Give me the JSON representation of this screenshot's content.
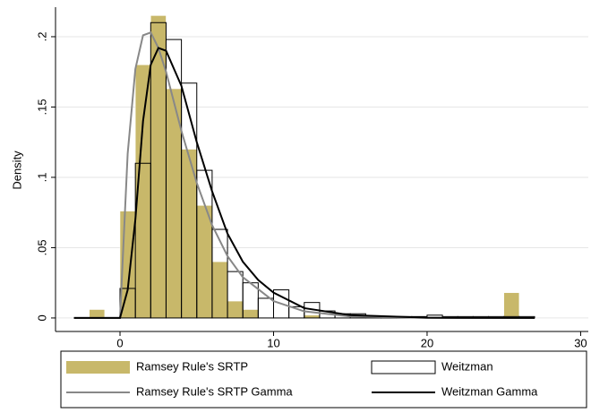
{
  "chart_data": {
    "type": "histogram",
    "ylabel": "Density",
    "xlim": [
      -4.2,
      30.5
    ],
    "ylim": [
      -0.0096,
      0.221
    ],
    "xticks": [
      0,
      10,
      20,
      30
    ],
    "yticks": [
      0,
      {
        "value": 0.05,
        "label": ".05"
      },
      {
        "value": 0.1,
        "label": ".1"
      },
      {
        "value": 0.15,
        "label": ".15"
      },
      {
        "value": 0.2,
        "label": ".2"
      }
    ],
    "grid": true,
    "legend": "bottom",
    "series": [
      {
        "name": "Ramsey Rule's SRTP",
        "type": "histogram",
        "color": "#c8b86a",
        "bins": [
          -2,
          -1,
          0,
          1,
          2,
          3,
          4,
          5,
          6,
          7,
          8,
          9,
          10,
          11,
          12,
          13,
          14,
          15,
          16,
          17,
          18,
          19,
          20,
          21,
          22,
          23,
          24,
          25,
          26,
          27
        ],
        "values": [
          0.006,
          0,
          0.076,
          0.18,
          0.215,
          0.163,
          0.12,
          0.08,
          0.04,
          0.012,
          0.006,
          0,
          0,
          0,
          0.002,
          0,
          0,
          0,
          0,
          0,
          0,
          0,
          0,
          0,
          0,
          0,
          0,
          0.018,
          0
        ]
      },
      {
        "name": "Weitzman",
        "type": "histogram",
        "color": "#000000",
        "bins": [
          0,
          1,
          2,
          3,
          4,
          5,
          6,
          7,
          8,
          9,
          10,
          11,
          12,
          13,
          14,
          15,
          16,
          17,
          18,
          19,
          20,
          21,
          22,
          23,
          24,
          25,
          26,
          27
        ],
        "values": [
          0.021,
          0.11,
          0.21,
          0.198,
          0.167,
          0.105,
          0.063,
          0.033,
          0.025,
          0.014,
          0.02,
          0.008,
          0.011,
          0.005,
          0.003,
          0.003,
          0.001,
          0.001,
          0.001,
          0.001,
          0.002,
          0.001,
          0.001,
          0.001,
          0.001,
          0.001,
          0.001
        ]
      },
      {
        "name": "Ramsey Rule's SRTP Gamma",
        "type": "line",
        "color": "#888888",
        "x": [
          -3,
          0,
          0.5,
          1,
          1.5,
          2,
          2.5,
          3,
          4,
          5,
          6,
          7,
          8,
          10,
          12,
          15,
          20,
          27
        ],
        "values": [
          0,
          0,
          0.117,
          0.177,
          0.201,
          0.203,
          0.192,
          0.175,
          0.133,
          0.096,
          0.066,
          0.044,
          0.029,
          0.012,
          0.0047,
          0.0011,
          0.0001,
          0
        ]
      },
      {
        "name": "Weitzman Gamma",
        "type": "line",
        "color": "#000000",
        "x": [
          -3,
          0,
          0.5,
          1,
          1.5,
          2,
          2.5,
          3,
          4,
          5,
          6,
          7,
          8,
          9,
          10,
          12,
          15,
          20,
          27
        ],
        "values": [
          0,
          0,
          0.02,
          0.07,
          0.14,
          0.18,
          0.192,
          0.19,
          0.165,
          0.125,
          0.09,
          0.06,
          0.04,
          0.027,
          0.018,
          0.007,
          0.002,
          0.0002,
          0
        ]
      }
    ]
  }
}
